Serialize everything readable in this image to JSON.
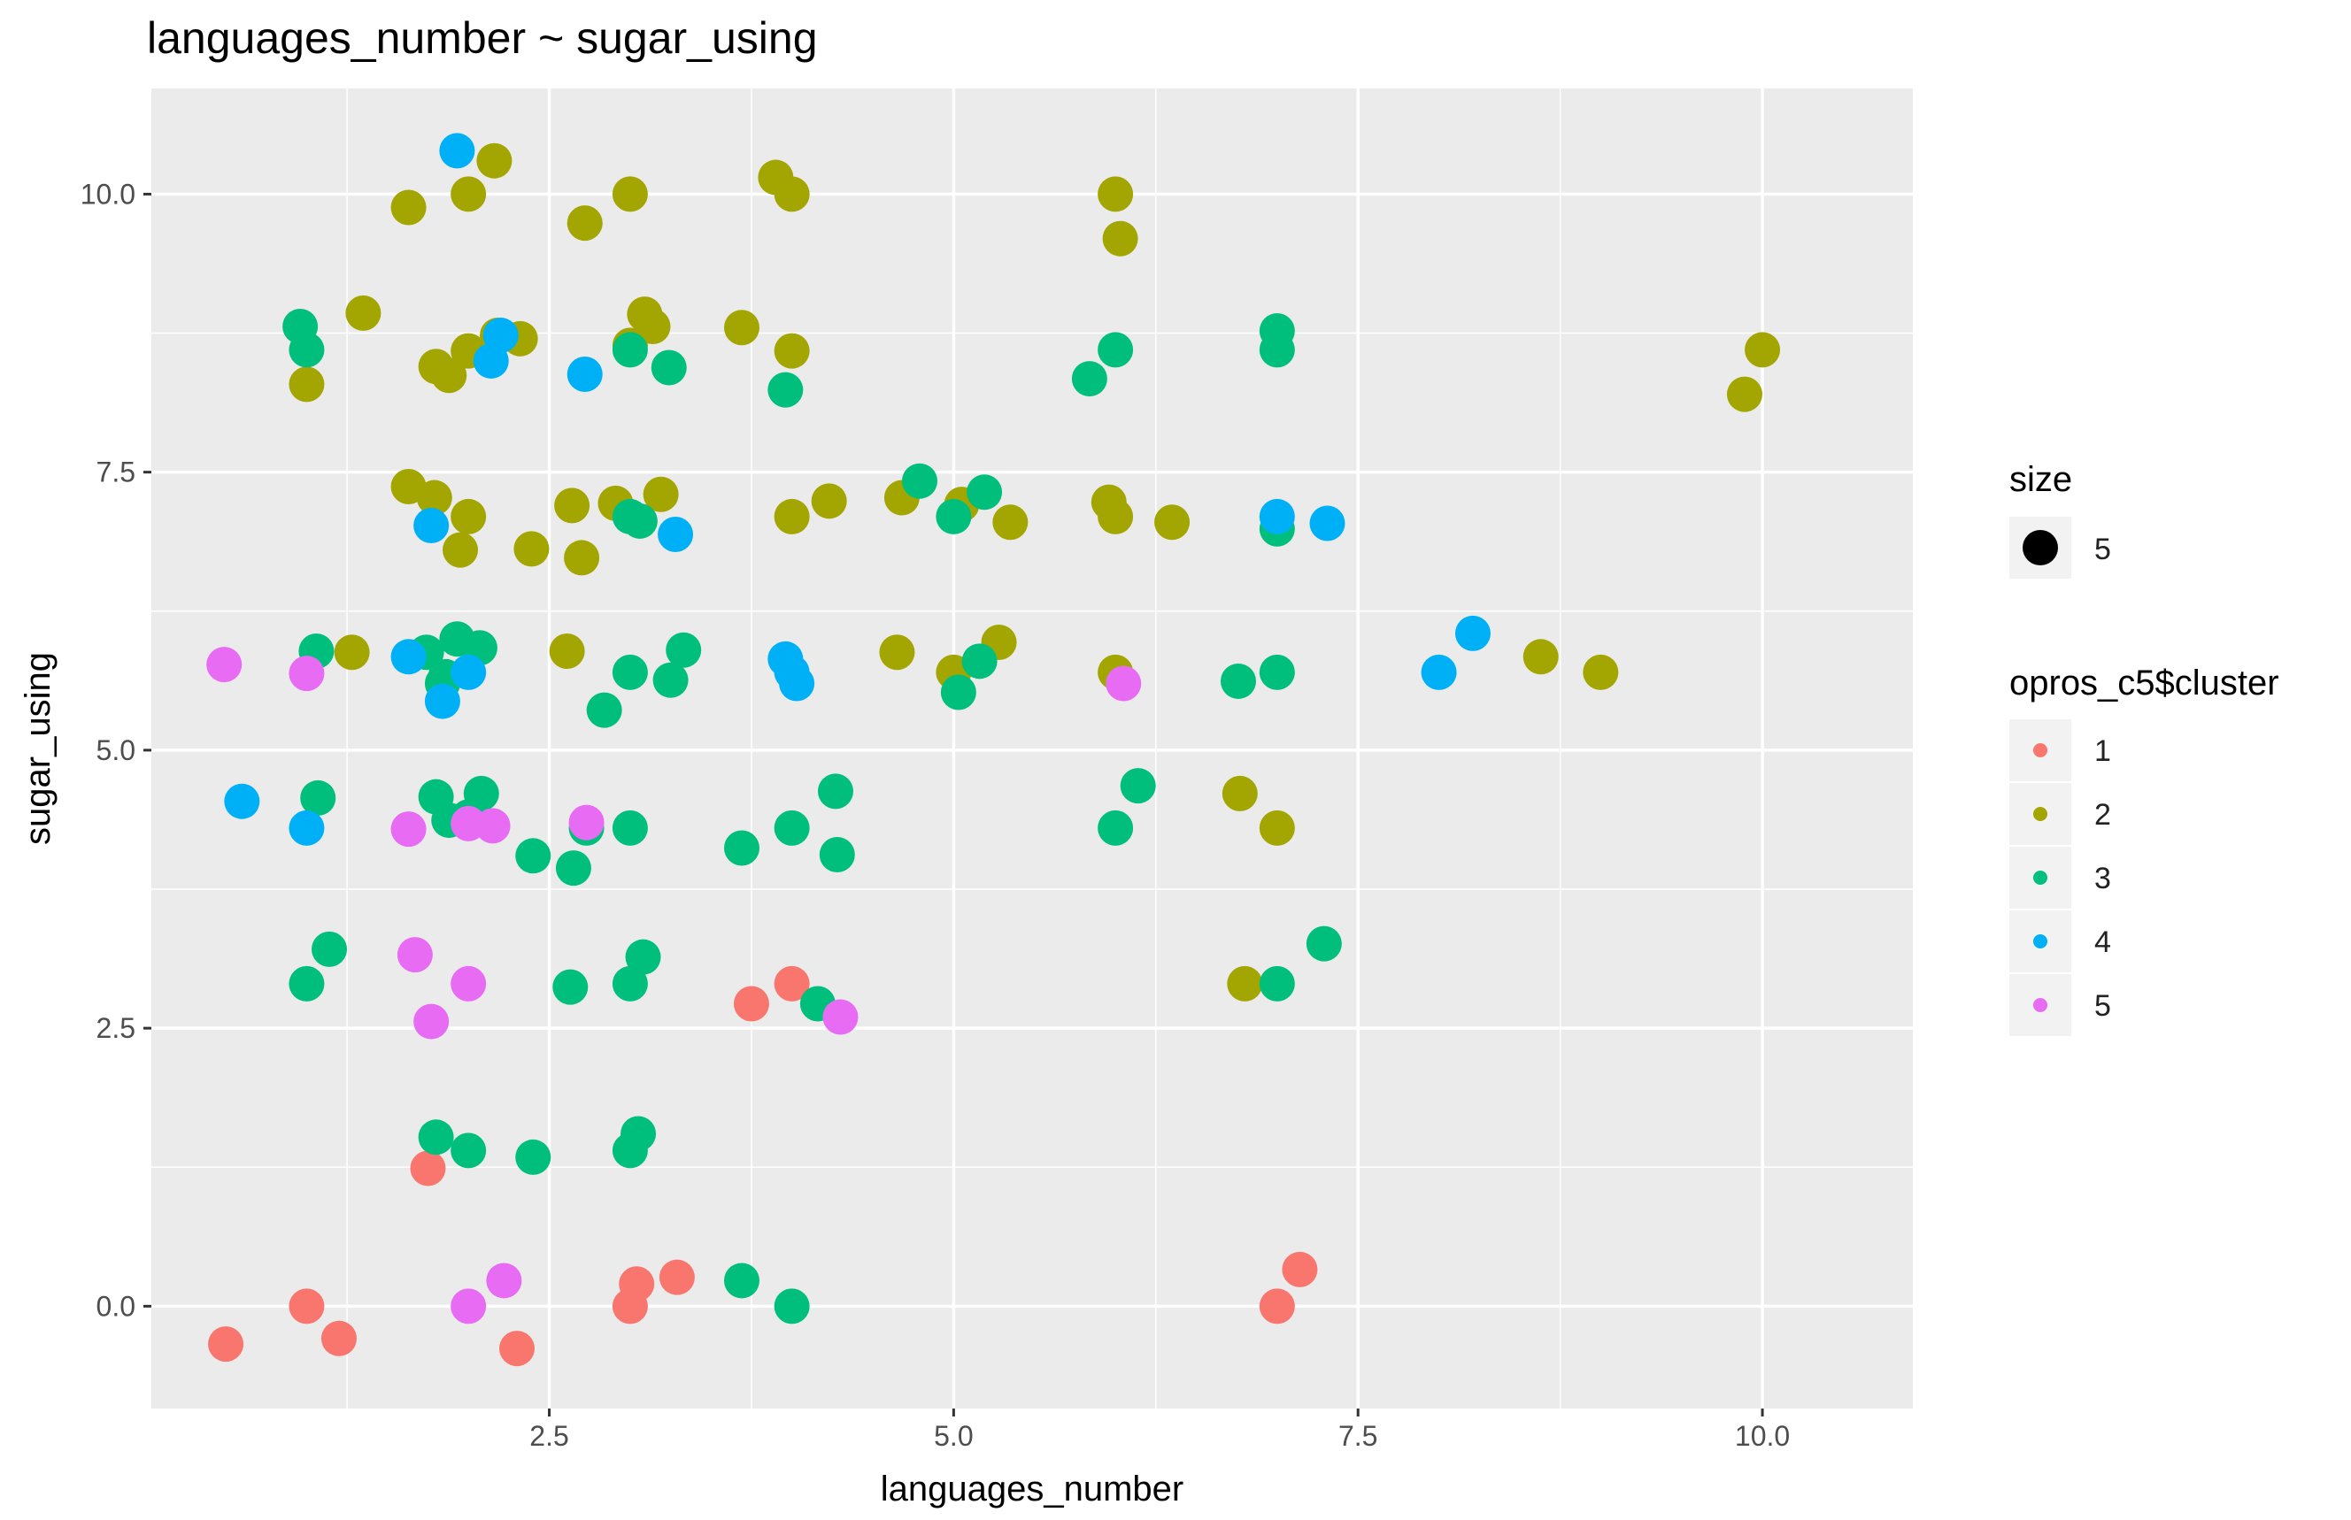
{
  "chart_data": {
    "type": "scatter",
    "title": "languages_number ~ sugar_using",
    "xlabel": "languages_number",
    "ylabel": "sugar_using",
    "xlim": [
      0.04,
      10.93
    ],
    "ylim": [
      -0.92,
      10.95
    ],
    "xticks": [
      2.5,
      5.0,
      7.5,
      10.0
    ],
    "xtick_labels": [
      "2.5",
      "5.0",
      "7.5",
      "10.0"
    ],
    "yticks": [
      0.0,
      2.5,
      5.0,
      7.5,
      10.0
    ],
    "ytick_labels": [
      "0.0",
      "2.5",
      "5.0",
      "7.5",
      "10.0"
    ],
    "grid": true,
    "panel_background": "#EBEBEB",
    "legend_placement": "right",
    "legend": {
      "size": {
        "title": "size",
        "label": "5"
      },
      "color": {
        "title": "opros_c5$cluster",
        "labels": [
          "1",
          "2",
          "3",
          "4",
          "5"
        ]
      }
    },
    "colors": {
      "1": "#F8766D",
      "2": "#A3A500",
      "3": "#00BF7D",
      "4": "#00B0F6",
      "5": "#E76BF3"
    },
    "series": [
      {
        "name": "1",
        "points": [
          [
            0.5,
            -0.34
          ],
          [
            1.0,
            0.0
          ],
          [
            1.2,
            -0.29
          ],
          [
            1.75,
            1.24
          ],
          [
            2.3,
            -0.38
          ],
          [
            3.0,
            0.0
          ],
          [
            3.04,
            0.2
          ],
          [
            3.29,
            0.26
          ],
          [
            3.75,
            2.72
          ],
          [
            4.0,
            2.9
          ],
          [
            7.0,
            0.0
          ],
          [
            7.14,
            0.33
          ]
        ]
      },
      {
        "name": "2",
        "points": [
          [
            1.0,
            8.29
          ],
          [
            1.35,
            8.93
          ],
          [
            1.28,
            5.88
          ],
          [
            1.63,
            9.88
          ],
          [
            1.63,
            7.37
          ],
          [
            1.79,
            7.27
          ],
          [
            1.8,
            8.45
          ],
          [
            1.88,
            8.37
          ],
          [
            1.95,
            6.8
          ],
          [
            2.0,
            7.1
          ],
          [
            2.0,
            8.59
          ],
          [
            2.0,
            10.0
          ],
          [
            2.16,
            10.3
          ],
          [
            2.18,
            8.73
          ],
          [
            2.32,
            8.7
          ],
          [
            2.39,
            6.81
          ],
          [
            2.61,
            5.89
          ],
          [
            2.64,
            7.2
          ],
          [
            2.7,
            6.73
          ],
          [
            2.72,
            9.74
          ],
          [
            2.91,
            7.22
          ],
          [
            3.0,
            10.0
          ],
          [
            3.0,
            8.64
          ],
          [
            3.09,
            8.92
          ],
          [
            3.14,
            8.81
          ],
          [
            3.19,
            7.3
          ],
          [
            3.69,
            8.8
          ],
          [
            3.9,
            10.15
          ],
          [
            4.0,
            10.0
          ],
          [
            4.0,
            8.59
          ],
          [
            4.0,
            7.1
          ],
          [
            4.23,
            7.24
          ],
          [
            4.65,
            5.88
          ],
          [
            4.68,
            7.27
          ],
          [
            5.0,
            5.7
          ],
          [
            5.05,
            7.21
          ],
          [
            5.28,
            5.97
          ],
          [
            5.35,
            7.05
          ],
          [
            5.96,
            7.23
          ],
          [
            6.0,
            10.0
          ],
          [
            6.0,
            7.1
          ],
          [
            6.0,
            5.7
          ],
          [
            6.03,
            9.6
          ],
          [
            6.35,
            7.05
          ],
          [
            6.77,
            4.61
          ],
          [
            6.8,
            2.9
          ],
          [
            7.0,
            4.3
          ],
          [
            8.63,
            5.84
          ],
          [
            9.0,
            5.7
          ],
          [
            9.89,
            8.2
          ],
          [
            10.0,
            8.6
          ]
        ]
      },
      {
        "name": "3",
        "points": [
          [
            0.96,
            8.81
          ],
          [
            1.0,
            8.6
          ],
          [
            1.0,
            2.9
          ],
          [
            1.06,
            5.89
          ],
          [
            1.07,
            4.57
          ],
          [
            1.14,
            3.21
          ],
          [
            1.74,
            5.88
          ],
          [
            1.8,
            4.58
          ],
          [
            1.8,
            1.52
          ],
          [
            1.84,
            5.6
          ],
          [
            1.86,
            5.66
          ],
          [
            1.88,
            4.37
          ],
          [
            1.93,
            6.0
          ],
          [
            2.0,
            4.4
          ],
          [
            2.0,
            1.4
          ],
          [
            2.07,
            5.92
          ],
          [
            2.08,
            4.61
          ],
          [
            2.4,
            4.05
          ],
          [
            2.4,
            1.34
          ],
          [
            2.63,
            2.87
          ],
          [
            2.65,
            3.94
          ],
          [
            2.73,
            4.3
          ],
          [
            2.84,
            5.36
          ],
          [
            3.0,
            8.6
          ],
          [
            3.0,
            7.1
          ],
          [
            3.0,
            5.7
          ],
          [
            3.0,
            4.3
          ],
          [
            3.0,
            2.9
          ],
          [
            3.0,
            1.4
          ],
          [
            3.05,
            1.55
          ],
          [
            3.06,
            7.06
          ],
          [
            3.08,
            3.14
          ],
          [
            3.24,
            8.44
          ],
          [
            3.25,
            5.63
          ],
          [
            3.33,
            5.9
          ],
          [
            3.69,
            4.12
          ],
          [
            3.69,
            0.23
          ],
          [
            3.96,
            8.24
          ],
          [
            4.0,
            4.3
          ],
          [
            4.0,
            0.0
          ],
          [
            4.16,
            2.72
          ],
          [
            4.27,
            4.63
          ],
          [
            4.28,
            4.06
          ],
          [
            4.79,
            7.42
          ],
          [
            5.0,
            7.1
          ],
          [
            5.03,
            5.52
          ],
          [
            5.16,
            5.8
          ],
          [
            5.19,
            7.32
          ],
          [
            5.84,
            8.34
          ],
          [
            6.0,
            8.6
          ],
          [
            6.0,
            4.3
          ],
          [
            6.14,
            4.68
          ],
          [
            6.76,
            5.62
          ],
          [
            7.0,
            8.77
          ],
          [
            7.0,
            8.6
          ],
          [
            7.0,
            6.99
          ],
          [
            7.0,
            5.7
          ],
          [
            7.0,
            2.9
          ],
          [
            7.29,
            3.26
          ]
        ]
      },
      {
        "name": "4",
        "points": [
          [
            0.6,
            4.54
          ],
          [
            1.0,
            4.3
          ],
          [
            1.63,
            5.84
          ],
          [
            1.77,
            7.02
          ],
          [
            1.84,
            5.44
          ],
          [
            1.93,
            10.39
          ],
          [
            2.0,
            5.7
          ],
          [
            2.2,
            8.73
          ],
          [
            2.14,
            8.5
          ],
          [
            2.72,
            8.38
          ],
          [
            3.28,
            6.94
          ],
          [
            3.96,
            5.82
          ],
          [
            4.0,
            5.7
          ],
          [
            4.03,
            5.6
          ],
          [
            7.0,
            7.1
          ],
          [
            7.31,
            7.04
          ],
          [
            8.0,
            5.7
          ],
          [
            8.21,
            6.05
          ]
        ]
      },
      {
        "name": "5",
        "points": [
          [
            0.49,
            5.77
          ],
          [
            1.0,
            5.69
          ],
          [
            1.63,
            4.29
          ],
          [
            1.67,
            3.16
          ],
          [
            1.77,
            2.56
          ],
          [
            2.0,
            4.34
          ],
          [
            2.0,
            2.9
          ],
          [
            2.0,
            0.0
          ],
          [
            2.15,
            4.32
          ],
          [
            2.22,
            0.23
          ],
          [
            2.73,
            4.35
          ],
          [
            4.3,
            2.6
          ],
          [
            6.05,
            5.6
          ]
        ]
      }
    ]
  }
}
